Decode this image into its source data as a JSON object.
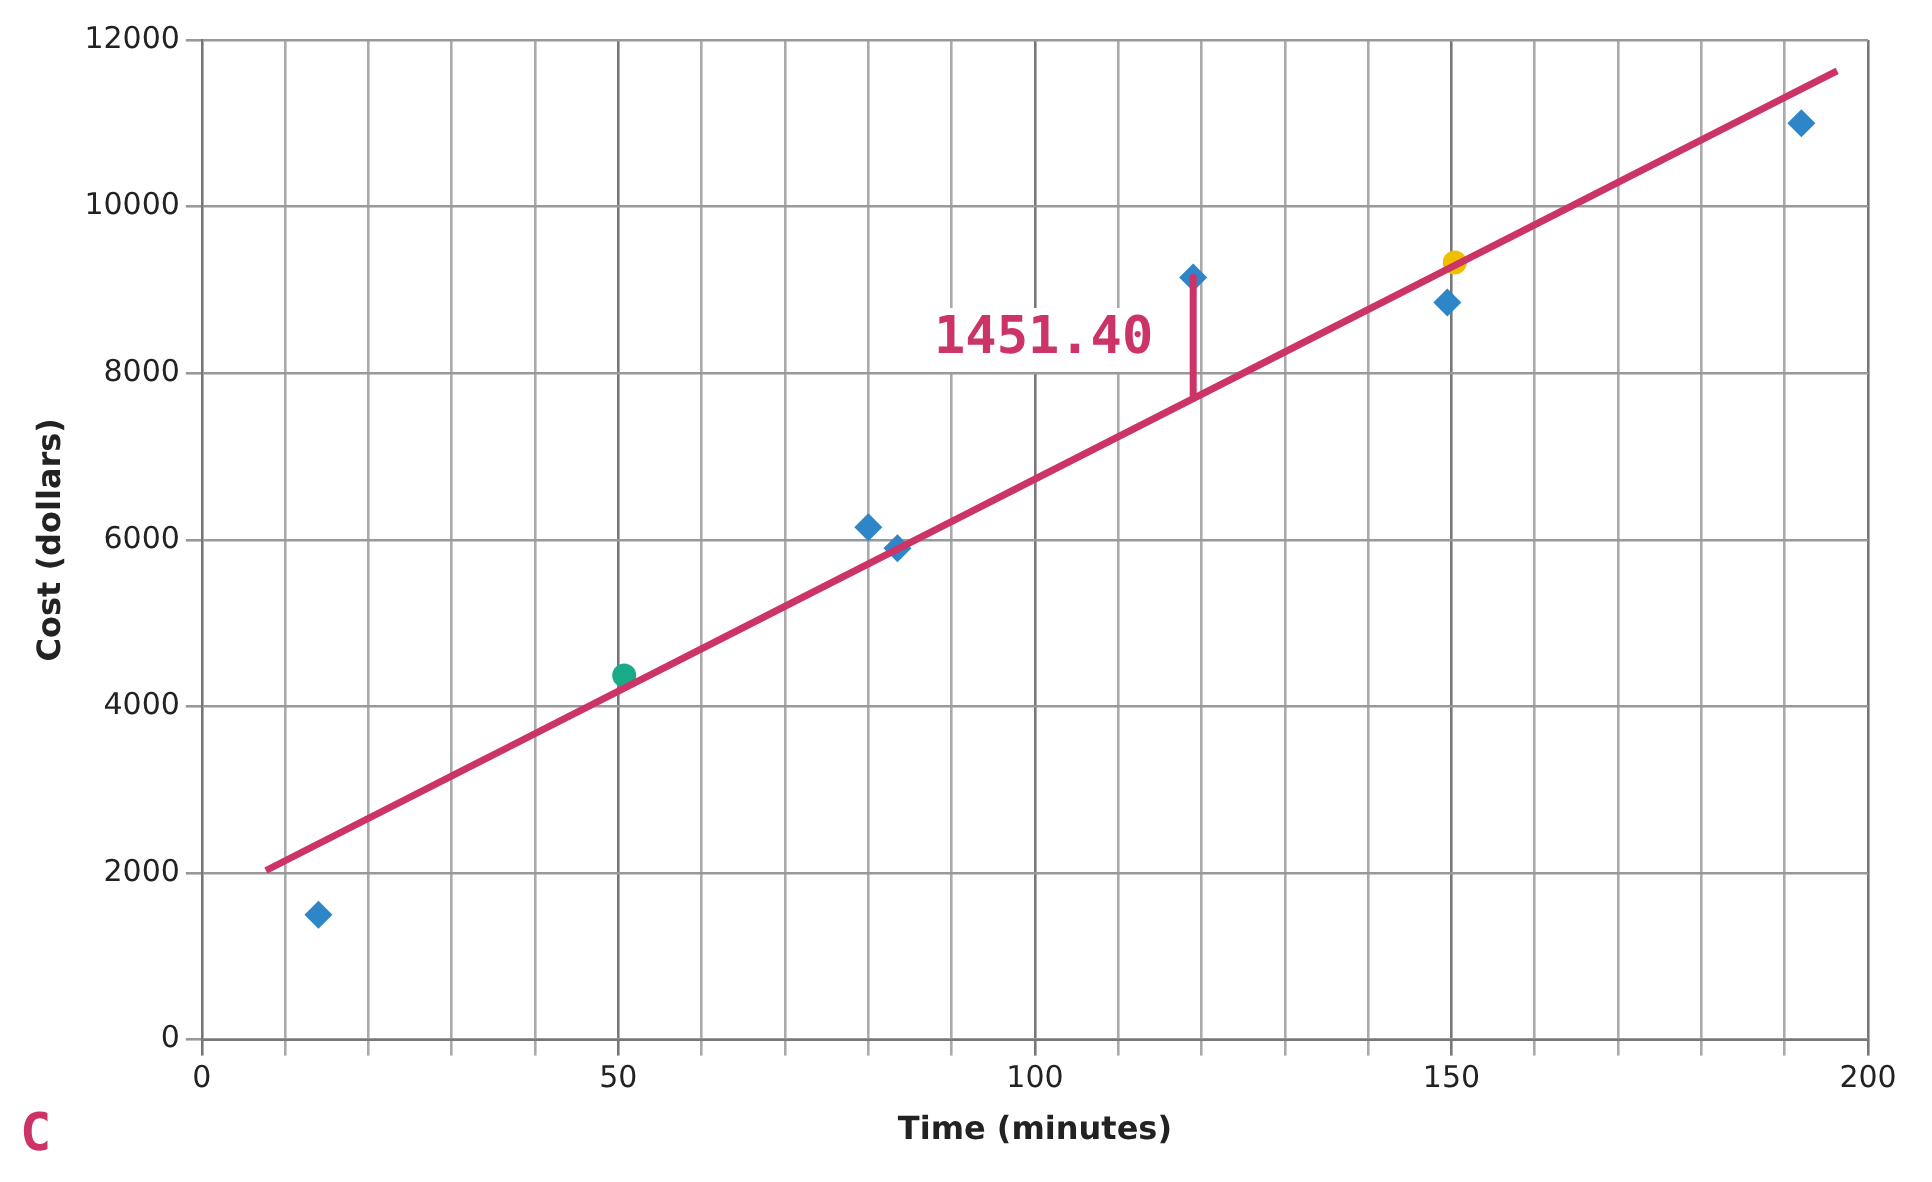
{
  "chart_data": {
    "type": "scatter",
    "xlabel": "Time (minutes)",
    "ylabel": "Cost (dollars)",
    "xlim": [
      0,
      200
    ],
    "ylim": [
      0,
      12000
    ],
    "xticks": [
      0,
      {
        "value": 10,
        "label": null
      },
      {
        "value": 20,
        "label": null
      },
      {
        "value": 30,
        "label": null
      },
      {
        "value": 40,
        "label": null
      },
      50,
      {
        "value": 60,
        "label": null
      },
      {
        "value": 70,
        "label": null
      },
      {
        "value": 80,
        "label": null
      },
      {
        "value": 90,
        "label": null
      },
      100,
      {
        "value": 110,
        "label": null
      },
      {
        "value": 120,
        "label": null
      },
      {
        "value": 130,
        "label": null
      },
      {
        "value": 140,
        "label": null
      },
      150,
      {
        "value": 160,
        "label": null
      },
      {
        "value": 170,
        "label": null
      },
      {
        "value": 180,
        "label": null
      },
      {
        "value": 190,
        "label": null
      },
      200
    ],
    "yticks": [
      0,
      2000,
      4000,
      6000,
      8000,
      10000,
      12000
    ],
    "grid": true,
    "series": [
      {
        "type": "line",
        "color": "#cc3366",
        "marker": "none",
        "x": [
          7.7,
          196.3
        ],
        "values": [
          2030,
          11630
        ]
      },
      {
        "type": "line",
        "color": "#cc3366",
        "marker": "none",
        "x": [
          119,
          119
        ],
        "values": [
          9150,
          7700
        ]
      },
      {
        "type": "scatter",
        "color": "#2e86c8",
        "marker": "diamond",
        "x": [
          14,
          80,
          83.5,
          119,
          149.5,
          192
        ],
        "values": [
          1500,
          6150,
          5900,
          9150,
          8850,
          11000
        ]
      },
      {
        "type": "scatter",
        "color": "#1aaa88",
        "marker": "circle",
        "x": [
          50.7
        ],
        "values": [
          4370
        ]
      },
      {
        "type": "scatter",
        "color": "#f0c000",
        "marker": "circle",
        "x": [
          150.4
        ],
        "values": [
          9330
        ]
      }
    ],
    "annotations": [
      {
        "text": "1451.40",
        "x": 119,
        "y": 8400
      },
      "C"
    ]
  }
}
